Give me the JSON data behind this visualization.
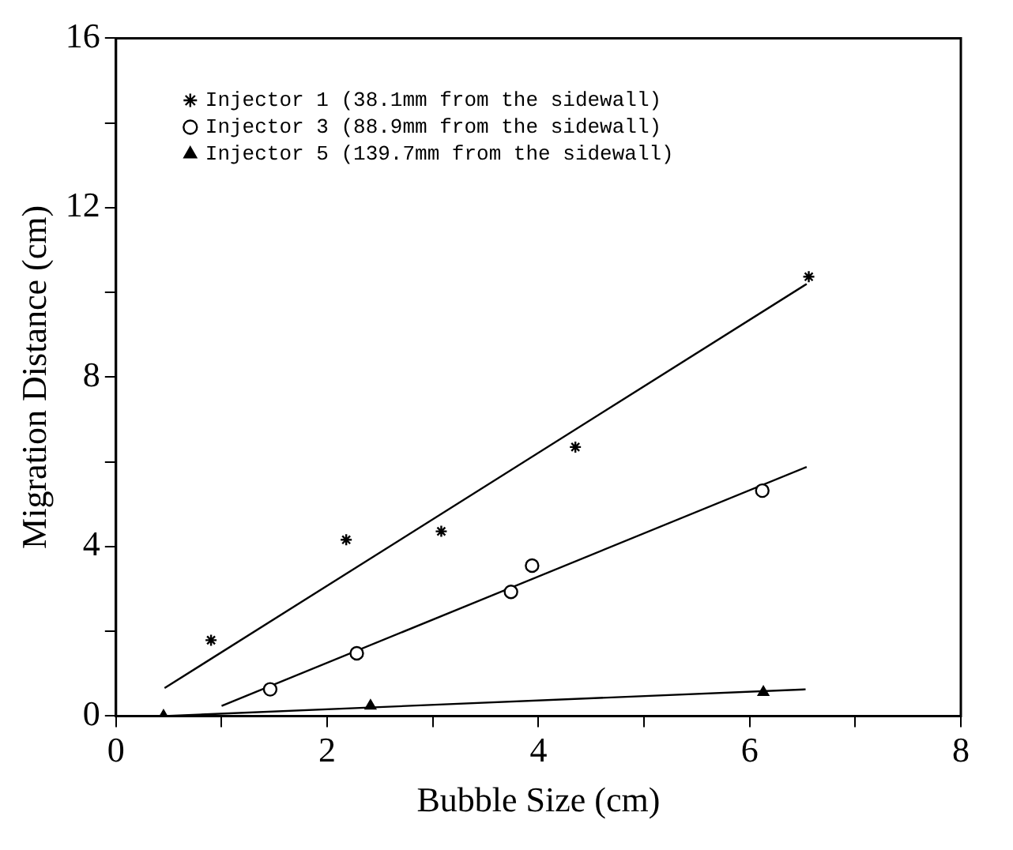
{
  "chart_data": {
    "type": "scatter",
    "xlabel": "Bubble Size (cm)",
    "ylabel": "Migration Distance (cm)",
    "xlim": [
      0,
      8
    ],
    "ylim": [
      0,
      16
    ],
    "xticks": [
      0,
      {
        "value": 1,
        "label": null
      },
      2,
      {
        "value": 3,
        "label": null
      },
      4,
      {
        "value": 5,
        "label": null
      },
      6,
      {
        "value": 7,
        "label": null
      },
      8
    ],
    "yticks": [
      0,
      {
        "value": 2,
        "label": null
      },
      4,
      {
        "value": 6,
        "label": null
      },
      8,
      {
        "value": 10,
        "label": null
      },
      12,
      {
        "value": 14,
        "label": null
      },
      16
    ],
    "grid": false,
    "legend": "top left",
    "series": [
      {
        "name": "Injector 1 (38.1mm from the sidewall)",
        "color": "#000000",
        "marker": "cross",
        "x": [
          0.9,
          2.18,
          3.08,
          4.35,
          6.56
        ],
        "values": [
          1.79,
          4.16,
          4.36,
          6.35,
          10.37
        ]
      },
      {
        "name": "Injector 3 (88.9mm from the sidewall)",
        "color": "#000000",
        "marker": "circle",
        "x": [
          1.46,
          2.28,
          3.74,
          3.94,
          6.12
        ],
        "values": [
          0.63,
          1.48,
          2.93,
          3.55,
          5.32
        ]
      },
      {
        "name": "Injector 5 (139.7mm from the sidewall)",
        "color": "#000000",
        "marker": "triangle",
        "x": [
          0.45,
          2.41,
          6.13
        ],
        "values": [
          0,
          0.24,
          0.56
        ]
      },
      {
        "type": "line",
        "color": "#000000",
        "marker": "none",
        "line_style": "solid",
        "x": [
          0.46,
          6.54
        ],
        "values": [
          0.66,
          10.2
        ]
      },
      {
        "type": "line",
        "color": "#000000",
        "marker": "none",
        "line_style": "solid",
        "x": [
          1.0,
          6.54
        ],
        "values": [
          0.24,
          5.88
        ]
      },
      {
        "type": "line",
        "color": "#000000",
        "marker": "none",
        "line_style": "solid",
        "x": [
          0.46,
          6.53
        ],
        "values": [
          0,
          0.63
        ]
      }
    ]
  }
}
